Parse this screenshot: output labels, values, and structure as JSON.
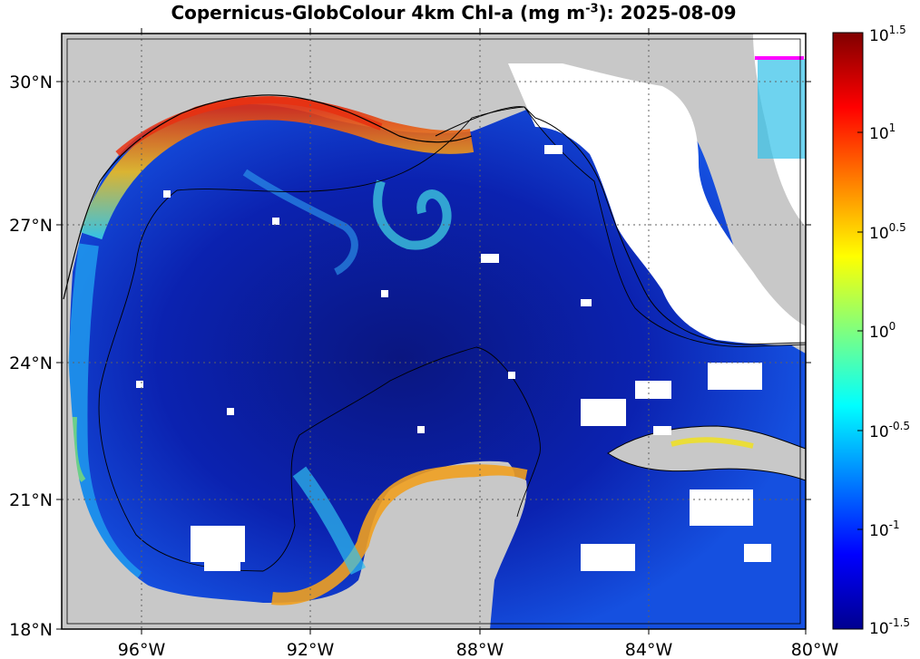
{
  "title": {
    "prefix": "Copernicus-GlobColour 4km Chl-a (mg m",
    "exponent": "-3",
    "suffix": "): 2025-08-09"
  },
  "axes": {
    "lat_ticks": [
      {
        "value": 30,
        "label": "30°N"
      },
      {
        "value": 27,
        "label": "27°N"
      },
      {
        "value": 24,
        "label": "24°N"
      },
      {
        "value": 21,
        "label": "21°N"
      },
      {
        "value": 18,
        "label": "18°N"
      }
    ],
    "lon_ticks": [
      {
        "value": -96,
        "label": "96°W"
      },
      {
        "value": -92,
        "label": "92°W"
      },
      {
        "value": -88,
        "label": "88°W"
      },
      {
        "value": -84,
        "label": "84°W"
      },
      {
        "value": -80,
        "label": "80°W"
      }
    ],
    "lon_range": [
      -98.2,
      -80
    ],
    "lat_range": [
      18,
      31.1
    ],
    "grid": "dotted"
  },
  "colorbar": {
    "scale": "log10",
    "range": [
      -1.5,
      1.5
    ],
    "colormap": "jet",
    "ticks": [
      {
        "base": "10",
        "exp": "1.5"
      },
      {
        "base": "10",
        "exp": "1"
      },
      {
        "base": "10",
        "exp": "0.5"
      },
      {
        "base": "10",
        "exp": "0"
      },
      {
        "base": "10",
        "exp": "-0.5"
      },
      {
        "base": "10",
        "exp": "-1"
      },
      {
        "base": "10",
        "exp": "-1.5"
      }
    ]
  },
  "colors": {
    "land": "#c8c8c8",
    "no_data": "#ffffff",
    "deep_ocean": "#0a1a9a",
    "coast_high": "#e8301a",
    "marker": "#ff00ff"
  }
}
